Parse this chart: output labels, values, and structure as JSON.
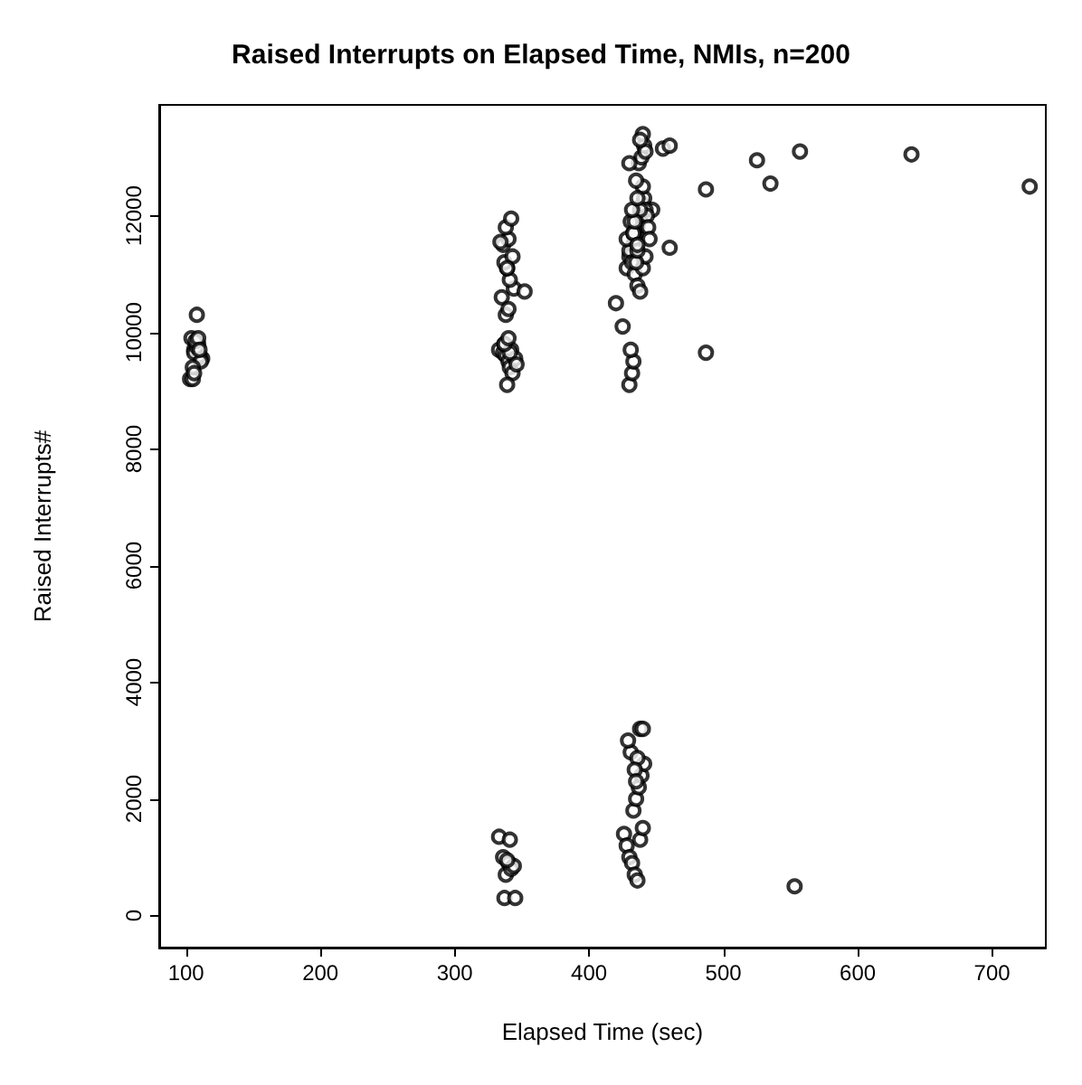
{
  "chart_data": {
    "type": "scatter",
    "title": "Raised Interrupts on Elapsed Time, NMIs, n=200",
    "xlabel": "Elapsed Time (sec)",
    "ylabel": "Raised Interrupts#",
    "x": [
      108,
      103,
      105,
      112,
      106,
      107,
      109,
      104,
      110,
      106,
      108,
      111,
      105,
      107,
      109,
      106,
      110,
      333,
      336,
      338,
      340,
      341,
      343,
      339,
      337,
      342,
      345,
      335,
      338,
      340,
      344,
      352,
      341,
      339,
      337,
      343,
      336,
      340,
      334,
      338,
      342,
      339,
      341,
      337,
      340,
      346,
      333,
      336,
      338,
      340,
      342,
      344,
      337,
      339,
      341,
      345,
      420,
      425,
      428,
      430,
      432,
      433,
      434,
      435,
      436,
      437,
      438,
      447,
      440,
      441,
      442,
      443,
      444,
      445,
      430,
      432,
      434,
      436,
      438,
      440,
      442,
      435,
      430,
      432,
      433,
      431,
      428,
      431,
      433,
      436,
      438,
      440,
      435,
      437,
      439,
      441,
      440,
      442,
      438,
      430,
      433,
      436,
      460,
      455,
      460,
      434,
      432,
      436,
      426,
      428,
      430,
      432,
      434,
      436,
      438,
      440,
      433,
      435,
      437,
      439,
      441,
      431,
      429,
      436,
      434,
      438,
      440,
      435,
      487,
      487,
      525,
      535,
      557,
      640,
      728,
      553
    ],
    "values": [
      10300,
      9200,
      9200,
      9550,
      9700,
      9850,
      9800,
      9900,
      9600,
      9650,
      9750,
      9500,
      9400,
      9850,
      9900,
      9300,
      9700,
      9700,
      9650,
      9600,
      9500,
      9400,
      9300,
      9100,
      9800,
      9700,
      9550,
      10600,
      10300,
      10400,
      10750,
      10700,
      10900,
      11100,
      11200,
      11300,
      11500,
      11600,
      11550,
      11800,
      11950,
      11100,
      9650,
      9800,
      9900,
      9450,
      1350,
      1000,
      700,
      900,
      800,
      850,
      300,
      950,
      1300,
      300,
      10500,
      10100,
      11100,
      11300,
      11400,
      11500,
      11600,
      11700,
      11800,
      11900,
      12000,
      12100,
      12200,
      12300,
      12100,
      12000,
      11800,
      11600,
      11400,
      11200,
      11000,
      10800,
      10700,
      11100,
      11300,
      11200,
      9100,
      9300,
      9500,
      9700,
      11600,
      11900,
      11700,
      11400,
      12100,
      12500,
      12600,
      12900,
      13000,
      13200,
      13400,
      13100,
      13300,
      12900,
      11700,
      11500,
      11450,
      13150,
      13200,
      11900,
      12100,
      12300,
      1400,
      1200,
      1000,
      900,
      700,
      600,
      1300,
      1500,
      1800,
      2000,
      2200,
      2400,
      2600,
      2800,
      3000,
      2700,
      2500,
      3200,
      3200,
      2300,
      12450,
      9650,
      12950,
      12550,
      13100,
      13050,
      12500,
      500
    ],
    "color": "#000000",
    "marker": "circle",
    "xlim": [
      80,
      740
    ],
    "xticks": [
      100,
      200,
      300,
      400,
      500,
      600,
      700
    ],
    "ylim": [
      -550,
      13900
    ],
    "yticks": [
      0,
      2000,
      4000,
      6000,
      8000,
      10000,
      12000
    ],
    "grid": false
  }
}
